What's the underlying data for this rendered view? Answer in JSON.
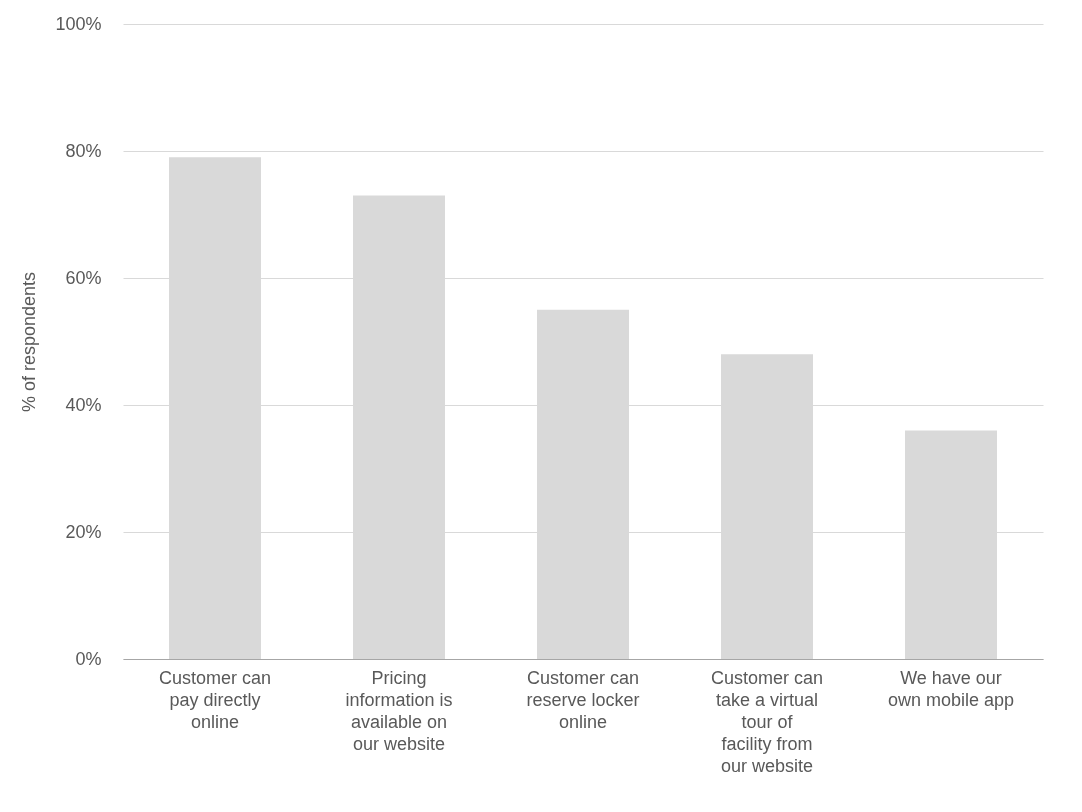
{
  "chart_data": {
    "type": "bar",
    "ylabel": "% of respondents",
    "categories": [
      "Customer can pay directly online",
      "Pricing information is available on our website",
      "Customer can reserve locker online",
      "Customer can take a virtual tour of facility from our website",
      "We have our own mobile app"
    ],
    "values": [
      79,
      73,
      55,
      48,
      36
    ],
    "color": "#d9d9d9",
    "ylim": [
      0,
      100
    ],
    "yticks": [
      {
        "value": 0,
        "label": "0%"
      },
      {
        "value": 20,
        "label": "20%"
      },
      {
        "value": 40,
        "label": "40%"
      },
      {
        "value": 60,
        "label": "60%"
      },
      {
        "value": 80,
        "label": "80%"
      },
      {
        "value": 100,
        "label": "100%"
      }
    ],
    "grid": "y"
  }
}
